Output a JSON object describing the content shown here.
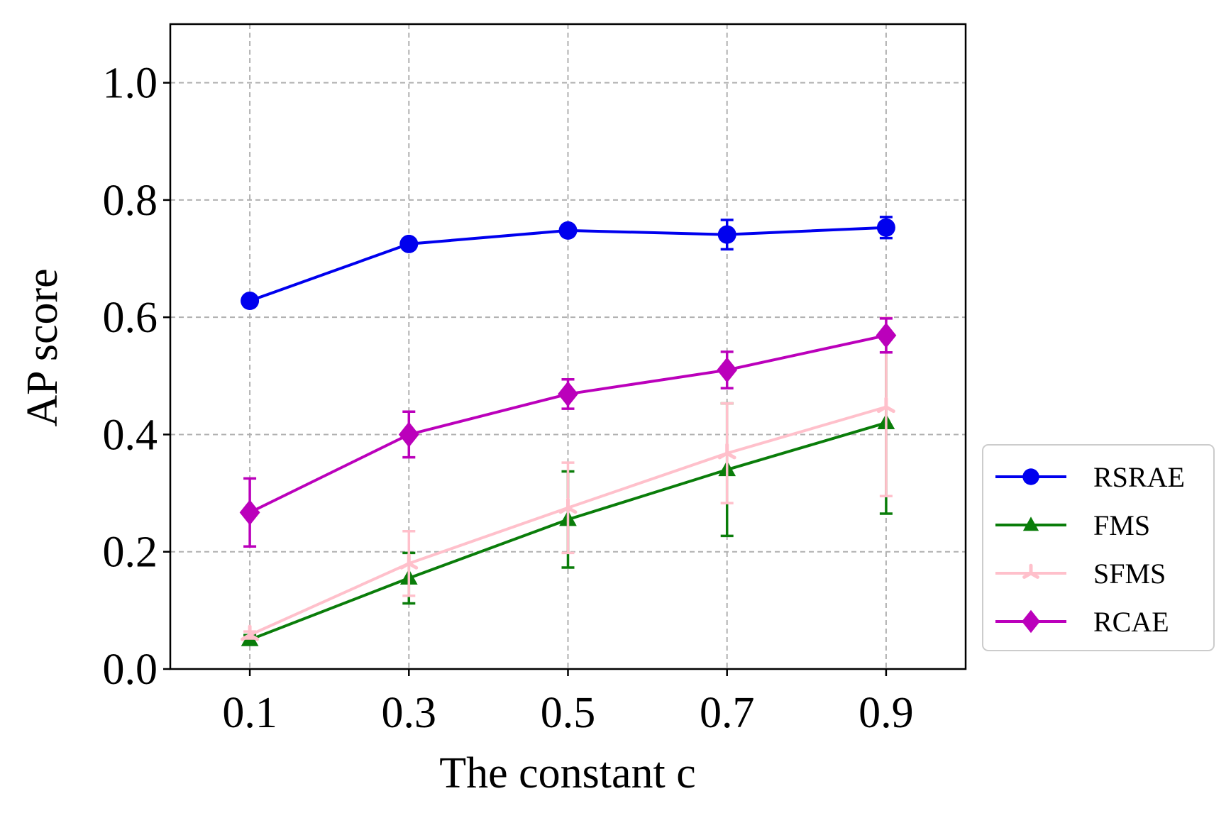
{
  "chart_data": {
    "type": "line",
    "title": "",
    "xlabel": "The constant c",
    "ylabel": "AP score",
    "categories": [
      "0.1",
      "0.3",
      "0.5",
      "0.7",
      "0.9"
    ],
    "x": [
      0.1,
      0.3,
      0.5,
      0.7,
      0.9
    ],
    "xlim": [
      0.0,
      1.0
    ],
    "ylim": [
      0.0,
      1.1
    ],
    "yticks": [
      "0.0",
      "0.2",
      "0.4",
      "0.6",
      "0.8",
      "1.0"
    ],
    "ytick_values": [
      0.0,
      0.2,
      0.4,
      0.6,
      0.8,
      1.0
    ],
    "grid": true,
    "legend_position": "outside-right-bottom",
    "series": [
      {
        "name": "RSRAE",
        "color": "#0000ee",
        "marker": "circle",
        "values": [
          0.628,
          0.725,
          0.748,
          0.741,
          0.753
        ],
        "errors": [
          0.005,
          0.006,
          0.006,
          0.025,
          0.018
        ]
      },
      {
        "name": "FMS",
        "color": "#0a7d0a",
        "marker": "triangle",
        "values": [
          0.05,
          0.155,
          0.255,
          0.34,
          0.42
        ],
        "errors": [
          0.008,
          0.043,
          0.082,
          0.113,
          0.155
        ]
      },
      {
        "name": "SFMS",
        "color": "#ffc0cb",
        "marker": "y-star",
        "values": [
          0.058,
          0.18,
          0.275,
          0.368,
          0.447
        ],
        "errors": [
          0.006,
          0.055,
          0.077,
          0.085,
          0.152
        ]
      },
      {
        "name": "RCAE",
        "color": "#bb00bb",
        "marker": "diamond",
        "values": [
          0.267,
          0.4,
          0.469,
          0.51,
          0.569
        ],
        "errors": [
          0.058,
          0.039,
          0.025,
          0.031,
          0.029
        ]
      }
    ]
  }
}
